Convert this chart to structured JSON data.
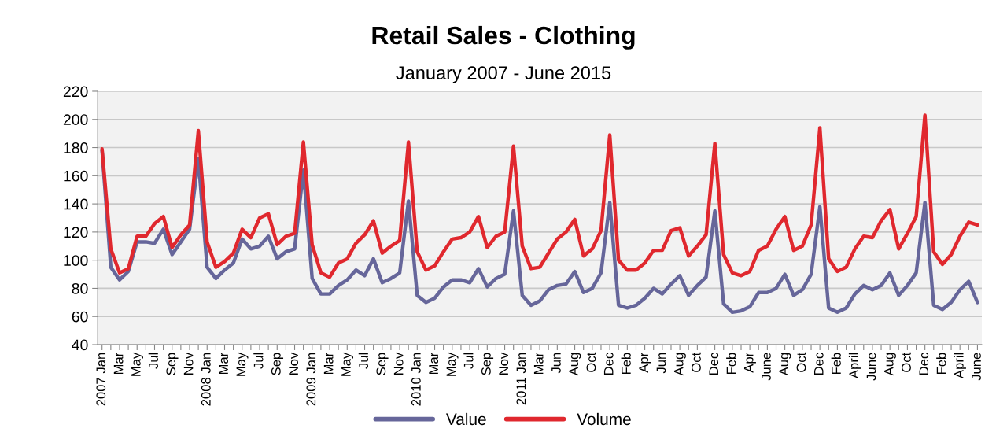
{
  "chart_data": {
    "type": "line",
    "title": "Retail Sales - Clothing",
    "subtitle": "January 2007 - June 2015",
    "categories": [
      "2007 Jan",
      null,
      "Mar",
      null,
      "May",
      null,
      "Jul",
      null,
      "Sep",
      null,
      "Nov",
      null,
      "2008 Jan",
      null,
      "Mar",
      null,
      "May",
      null,
      "Jul",
      null,
      "Sep",
      null,
      "Nov",
      null,
      "2009 Jan",
      null,
      "Mar",
      null,
      "May",
      null,
      "Jul",
      null,
      "Sep",
      null,
      "Nov",
      null,
      "2010 Jan",
      null,
      "Mar",
      null,
      "May",
      null,
      "Jul",
      null,
      "Sep",
      null,
      "Nov",
      null,
      "2011 Jan",
      null,
      "Mar",
      null,
      "Jun",
      null,
      "Aug",
      null,
      "Oct",
      null,
      "Dec",
      null,
      "Feb",
      null,
      "Apr",
      null,
      "Jun",
      null,
      "Aug",
      null,
      "Oct",
      null,
      "Dec",
      null,
      "Feb",
      null,
      "Apr",
      null,
      "June",
      null,
      "Aug",
      null,
      "Oct",
      null,
      "Dec",
      null,
      "Feb",
      null,
      "April",
      null,
      "June",
      null,
      "Aug",
      null,
      "Oct",
      null,
      "Dec",
      null,
      "Feb",
      null,
      "April",
      null,
      "June"
    ],
    "series": [
      {
        "name": "Value",
        "color": "#66669a",
        "values": [
          178,
          95,
          86,
          92,
          113,
          113,
          112,
          122,
          104,
          113,
          122,
          172,
          95,
          87,
          93,
          98,
          115,
          108,
          110,
          117,
          101,
          106,
          108,
          164,
          87,
          76,
          76,
          82,
          86,
          93,
          89,
          101,
          84,
          87,
          91,
          142,
          75,
          70,
          73,
          81,
          86,
          86,
          84,
          94,
          81,
          87,
          90,
          135,
          75,
          68,
          71,
          79,
          82,
          83,
          92,
          77,
          80,
          91,
          141,
          68,
          66,
          68,
          73,
          80,
          76,
          83,
          89,
          75,
          82,
          88,
          135,
          69,
          63,
          64,
          67,
          77,
          77,
          80,
          90,
          75,
          79,
          90,
          138,
          66,
          63,
          66,
          76,
          82,
          79,
          82,
          91,
          75,
          82,
          91,
          141,
          68,
          65,
          70,
          79,
          85,
          70
        ]
      },
      {
        "name": "Volume",
        "color": "#e0282e",
        "values": [
          179,
          108,
          91,
          94,
          117,
          117,
          126,
          131,
          109,
          118,
          125,
          192,
          113,
          95,
          99,
          105,
          122,
          116,
          130,
          133,
          111,
          117,
          119,
          184,
          111,
          91,
          88,
          98,
          101,
          112,
          118,
          128,
          105,
          110,
          114,
          184,
          106,
          93,
          96,
          106,
          115,
          116,
          120,
          131,
          109,
          117,
          120,
          181,
          110,
          94,
          95,
          105,
          115,
          120,
          129,
          103,
          108,
          121,
          189,
          100,
          93,
          93,
          98,
          107,
          107,
          121,
          123,
          103,
          110,
          118,
          183,
          104,
          91,
          89,
          92,
          107,
          110,
          122,
          131,
          107,
          110,
          125,
          194,
          101,
          92,
          95,
          108,
          117,
          116,
          128,
          136,
          108,
          119,
          131,
          203,
          106,
          97,
          104,
          117,
          127,
          125
        ]
      }
    ],
    "ylim": [
      40,
      220
    ],
    "yticks": [
      40,
      60,
      80,
      100,
      120,
      140,
      160,
      180,
      200,
      220
    ],
    "grid": "y",
    "legend": "bottom",
    "marker": "none",
    "line_style": "solid"
  }
}
